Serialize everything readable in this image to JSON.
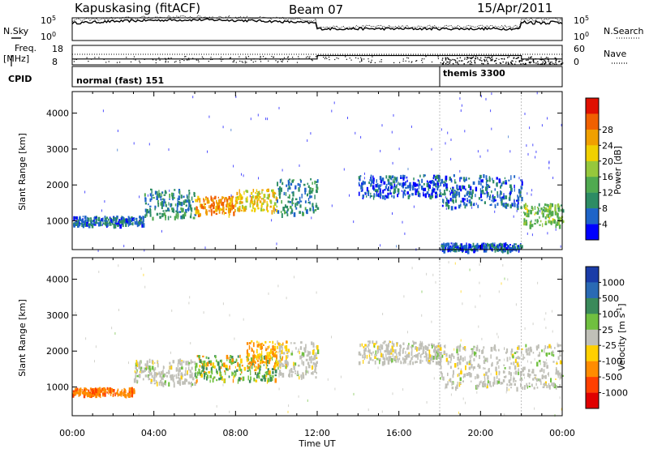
{
  "header": {
    "station": "Kapuskasing (fitACF)",
    "beam": "Beam 07",
    "date": "15/Apr/2011"
  },
  "top_strip": {
    "left_label": "N.Sky",
    "right_label": "N.Search",
    "left_ticks": [
      "10^5",
      "10^0"
    ],
    "right_ticks": [
      "10^5",
      "10^0"
    ]
  },
  "freq_strip": {
    "left_label_1": "Freq.",
    "left_label_2": "[MHz]",
    "left_ticks": [
      "18",
      "8"
    ],
    "right_label": "Nave",
    "right_ticks": [
      "60",
      "0"
    ]
  },
  "cpid_strip": {
    "label": "CPID",
    "segments": [
      {
        "text": "normal (fast) 151",
        "start_hour": 0
      },
      {
        "text": "themis 3300",
        "start_hour": 18
      }
    ]
  },
  "colors": {
    "power": [
      "#0000ff",
      "#1e64c8",
      "#2d8c64",
      "#50aa50",
      "#96c83c",
      "#f0d000",
      "#f0a000",
      "#f06000",
      "#e01000"
    ],
    "velocity": [
      "#1a3ca8",
      "#2a6ab4",
      "#3a8a5a",
      "#70c040",
      "#c0c0b8",
      "#ffd000",
      "#ff8c00",
      "#ff4000",
      "#e00000"
    ]
  },
  "chart_data": [
    {
      "type": "heatmap",
      "name": "power",
      "ylabel": "Slant Range [km]",
      "xlabel": "",
      "ylim": [
        200,
        4600
      ],
      "xlim": [
        0,
        24
      ],
      "yticks": [
        1000,
        2000,
        3000,
        4000
      ],
      "colorbar": {
        "label": "Power [dB]",
        "range": [
          0,
          32
        ],
        "ticks": [
          "4",
          "8",
          "12",
          "16",
          "20",
          "24",
          "28"
        ]
      },
      "scatter_regions": [
        {
          "from_hour": 0.0,
          "to_hour": 3.5,
          "range_km": [
            900,
            1150
          ],
          "value": 6
        },
        {
          "from_hour": 3.5,
          "to_hour": 6.0,
          "range_km": [
            1100,
            1900
          ],
          "value": 8
        },
        {
          "from_hour": 6.0,
          "to_hour": 8.0,
          "range_km": [
            1200,
            1700
          ],
          "value": 24
        },
        {
          "from_hour": 8.0,
          "to_hour": 10.0,
          "range_km": [
            1300,
            1900
          ],
          "value": 20
        },
        {
          "from_hour": 10.0,
          "to_hour": 12.0,
          "range_km": [
            1200,
            2200
          ],
          "value": 8
        },
        {
          "from_hour": 14.0,
          "to_hour": 18.0,
          "range_km": [
            1700,
            2300
          ],
          "value": 5
        },
        {
          "from_hour": 18.0,
          "to_hour": 22.0,
          "range_km": [
            1400,
            2300
          ],
          "value": 6
        },
        {
          "from_hour": 22.0,
          "to_hour": 24.0,
          "range_km": [
            900,
            1500
          ],
          "value": 14
        },
        {
          "from_hour": 18.0,
          "to_hour": 22.0,
          "range_km": [
            200,
            400
          ],
          "value": 5
        }
      ]
    },
    {
      "type": "heatmap",
      "name": "velocity",
      "ylabel": "Slant Range [km]",
      "xlabel": "Time UT",
      "ylim": [
        200,
        4600
      ],
      "xlim": [
        0,
        24
      ],
      "yticks": [
        1000,
        2000,
        3000,
        4000
      ],
      "xticks": [
        "00:00",
        "04:00",
        "08:00",
        "12:00",
        "16:00",
        "20:00",
        "00:00"
      ],
      "colorbar": {
        "label": "Velocity [m s^-1]",
        "ticks": [
          "1000",
          "500",
          "100",
          "25",
          "-25",
          "-100",
          "-500",
          "-1000"
        ]
      },
      "scatter_regions": [
        {
          "from_hour": 0.0,
          "to_hour": 3.0,
          "range_km": [
            800,
            1000
          ],
          "value": -500
        },
        {
          "from_hour": 3.0,
          "to_hour": 6.0,
          "range_km": [
            1100,
            1800
          ],
          "value": 0
        },
        {
          "from_hour": 6.0,
          "to_hour": 10.0,
          "range_km": [
            1200,
            1900
          ],
          "value": 100
        },
        {
          "from_hour": 8.5,
          "to_hour": 10.5,
          "range_km": [
            1600,
            2300
          ],
          "value": -100
        },
        {
          "from_hour": 10.0,
          "to_hour": 12.0,
          "range_km": [
            1300,
            2300
          ],
          "value": 0
        },
        {
          "from_hour": 14.0,
          "to_hour": 18.0,
          "range_km": [
            1700,
            2300
          ],
          "value": 0
        },
        {
          "from_hour": 18.0,
          "to_hour": 24.0,
          "range_km": [
            1000,
            2200
          ],
          "value": 0
        }
      ]
    }
  ]
}
